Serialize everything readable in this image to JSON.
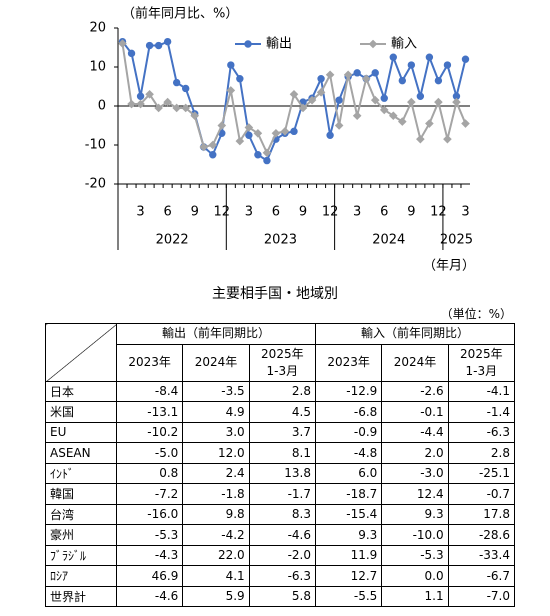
{
  "chart_data": {
    "type": "line",
    "y_label": "（前年同月比、%）",
    "x_label": "（年月）",
    "categories": [
      null,
      null,
      "3",
      null,
      null,
      "6",
      null,
      null,
      "9",
      null,
      null,
      "12",
      null,
      null,
      "3",
      null,
      null,
      "6",
      null,
      null,
      "9",
      null,
      null,
      "12",
      null,
      null,
      "3",
      null,
      null,
      "6",
      null,
      null,
      "9",
      null,
      null,
      "12",
      null,
      null,
      "3"
    ],
    "x_groups": [
      "2022",
      "2023",
      "2024",
      "2025"
    ],
    "series": [
      {
        "name": "輸出",
        "color": "#4472c4",
        "marker": "circle",
        "values": [
          16.5,
          13.5,
          2.5,
          15.5,
          15.5,
          16.5,
          6,
          4.5,
          -2,
          -10.5,
          -12.5,
          -7,
          10.5,
          7,
          -7.5,
          -12.5,
          -14,
          -8.5,
          -7,
          -6.5,
          1,
          2,
          7,
          -7.5,
          1.5,
          7.5,
          8.5,
          7,
          8.5,
          2,
          12.5,
          6.5,
          10.5,
          2.5,
          12.5,
          6.5,
          10.5,
          2.5,
          12
        ]
      },
      {
        "name": "輸入",
        "color": "#a5a5a5",
        "marker": "diamond",
        "values": [
          16,
          0.5,
          0.5,
          3,
          -0.5,
          1,
          -0.5,
          -0.5,
          -2.5,
          -10.5,
          -10,
          -5,
          4,
          -9,
          -5.5,
          -7,
          -12,
          -7,
          -6.5,
          3,
          -0.5,
          1.5,
          3.5,
          8,
          -5,
          8,
          -2.5,
          7,
          1.5,
          -1,
          -2.5,
          -4,
          1,
          -8.5,
          -4.5,
          1,
          -8.5,
          1,
          -4.5
        ]
      }
    ],
    "ylim": [
      -20,
      20
    ],
    "yticks": [
      -20,
      -10,
      0,
      10,
      20
    ],
    "grid": false,
    "legend": "top"
  },
  "table": {
    "title": "主要相手国・地域別",
    "unit": "（単位：%）",
    "groups": [
      "輸出（前年同期比）",
      "輸入（前年同期比）"
    ],
    "columns": [
      "2023年",
      "2024年",
      "2025年\n1-3月",
      "2023年",
      "2024年",
      "2025年\n1-3月"
    ],
    "rows": [
      [
        "日本",
        "-8.4",
        "-3.5",
        "2.8",
        "-12.9",
        "-2.6",
        "-4.1"
      ],
      [
        "米国",
        "-13.1",
        "4.9",
        "4.5",
        "-6.8",
        "-0.1",
        "-1.4"
      ],
      [
        "EU",
        "-10.2",
        "3.0",
        "3.7",
        "-0.9",
        "-4.4",
        "-6.3"
      ],
      [
        "ASEAN",
        "-5.0",
        "12.0",
        "8.1",
        "-4.8",
        "2.0",
        "2.8"
      ],
      [
        "ｲﾝﾄﾞ",
        "0.8",
        "2.4",
        "13.8",
        "6.0",
        "-3.0",
        "-25.1"
      ],
      [
        "韓国",
        "-7.2",
        "-1.8",
        "-1.7",
        "-18.7",
        "12.4",
        "-0.7"
      ],
      [
        "台湾",
        "-16.0",
        "9.8",
        "8.3",
        "-15.4",
        "9.3",
        "17.8"
      ],
      [
        "豪州",
        "-5.3",
        "-4.2",
        "-4.6",
        "9.3",
        "-10.0",
        "-28.6"
      ],
      [
        "ﾌﾞﾗｼﾞﾙ",
        "-4.3",
        "22.0",
        "-2.0",
        "11.9",
        "-5.3",
        "-33.4"
      ],
      [
        "ﾛｼｱ",
        "46.9",
        "4.1",
        "-6.3",
        "12.7",
        "0.0",
        "-6.7"
      ],
      [
        "世界計",
        "-4.6",
        "5.9",
        "5.8",
        "-5.5",
        "1.1",
        "-7.0"
      ]
    ]
  }
}
